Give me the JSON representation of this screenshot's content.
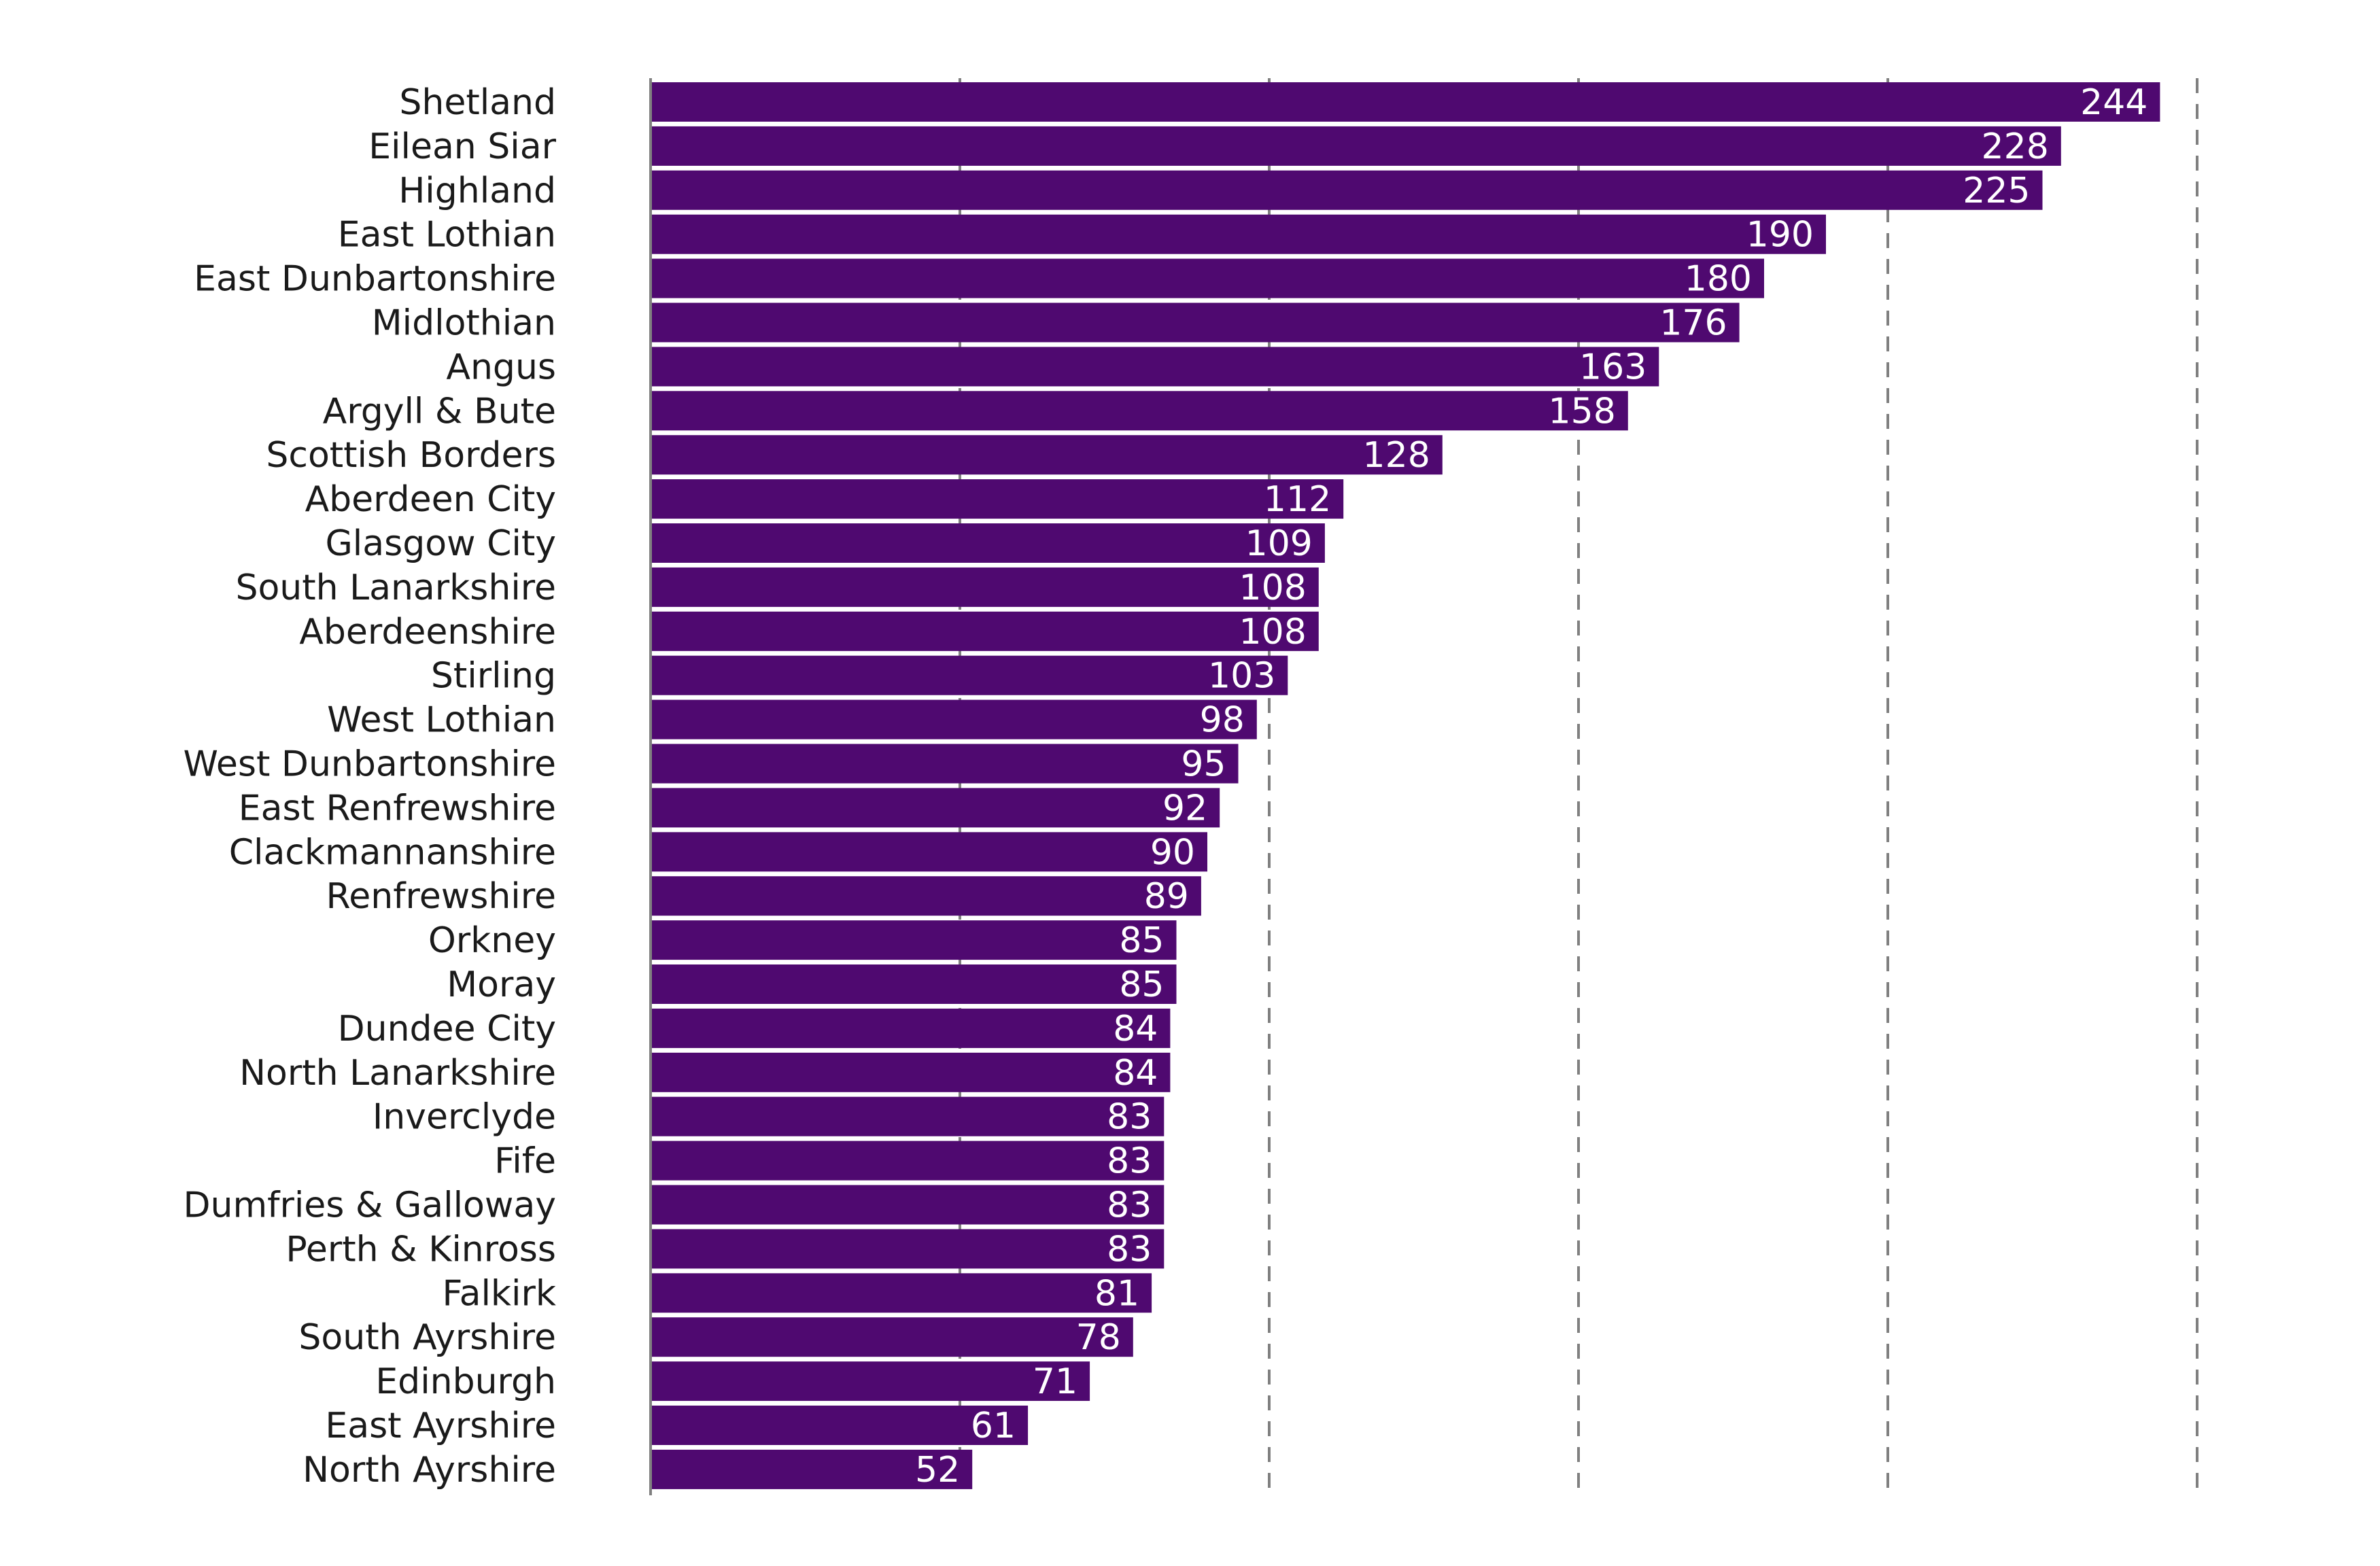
{
  "chart_data": {
    "type": "bar",
    "orientation": "horizontal",
    "title": "",
    "xlabel": "",
    "ylabel": "",
    "grid": true,
    "grid_style": "dashed-vertical",
    "xlim": [
      0,
      250
    ],
    "bar_color": "#4f0970",
    "categories": [
      "Shetland",
      "Eilean Siar",
      "Highland",
      "East Lothian",
      "East Dunbartonshire",
      "Midlothian",
      "Angus",
      "Argyll & Bute",
      "Scottish Borders",
      "Aberdeen City",
      "Glasgow City",
      "South Lanarkshire",
      "Aberdeenshire",
      "Stirling",
      "West Lothian",
      "West Dunbartonshire",
      "East Renfrewshire",
      "Clackmannanshire",
      "Renfrewshire",
      "Orkney",
      "Moray",
      "Dundee City",
      "North Lanarkshire",
      "Inverclyde",
      "Fife",
      "Dumfries & Galloway",
      "Perth & Kinross",
      "Falkirk",
      "South Ayrshire",
      "Edinburgh",
      "East Ayrshire",
      "North Ayrshire"
    ],
    "values": [
      244,
      228,
      225,
      190,
      180,
      176,
      163,
      158,
      128,
      112,
      109,
      108,
      108,
      103,
      98,
      95,
      92,
      90,
      89,
      85,
      85,
      84,
      84,
      83,
      83,
      83,
      83,
      81,
      78,
      71,
      61,
      52
    ],
    "value_labels": [
      "244",
      "228",
      "225",
      "190",
      "180",
      "176",
      "163",
      "158",
      "128",
      "112",
      "109",
      "108",
      "108",
      "103",
      "98",
      "95",
      "92",
      "90",
      "89",
      "85",
      "85",
      "84",
      "84",
      "83",
      "83",
      "83",
      "83",
      "81",
      "78",
      "71",
      "61",
      "52"
    ]
  }
}
